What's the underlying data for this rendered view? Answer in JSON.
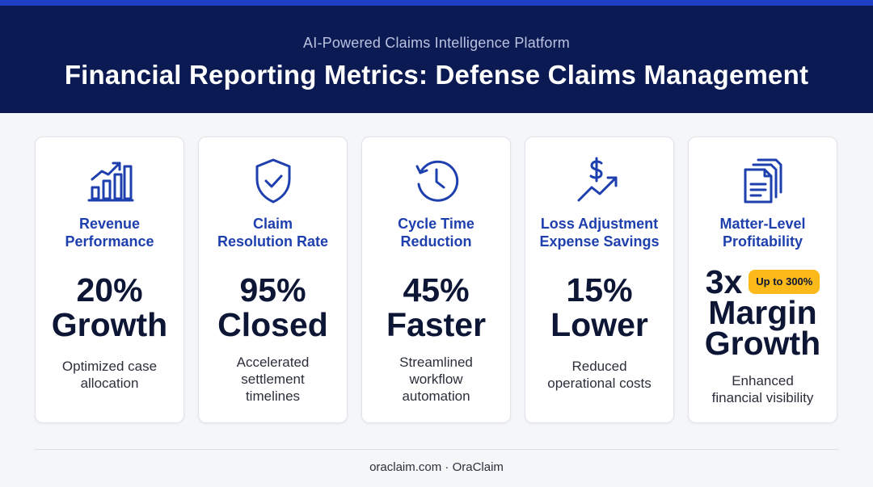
{
  "header": {
    "subtitle": "AI-Powered Claims Intelligence Platform",
    "title": "Financial Reporting Metrics: Defense Claims Management"
  },
  "cards": [
    {
      "icon": "bar-chart-growth-icon",
      "label_1": "Revenue",
      "label_2": "Performance",
      "value_1": "20%",
      "value_2": "Growth",
      "desc_1": "Optimized case",
      "desc_2": "allocation"
    },
    {
      "icon": "shield-check-icon",
      "label_1": "Claim",
      "label_2": "Resolution Rate",
      "value_1": "95%",
      "value_2": "Closed",
      "desc_1": "Accelerated",
      "desc_2": "settlement",
      "desc_3": "timelines"
    },
    {
      "icon": "clock-history-icon",
      "label_1": "Cycle Time",
      "label_2": "Reduction",
      "value_1": "45%",
      "value_2": "Faster",
      "desc_1": "Streamlined",
      "desc_2": "workflow",
      "desc_3": "automation"
    },
    {
      "icon": "dollar-trend-icon",
      "label_1": "Loss Adjustment",
      "label_2": "Expense Savings",
      "value_1": "15%",
      "value_2": "Lower",
      "desc_1": "Reduced",
      "desc_2": "operational costs"
    },
    {
      "icon": "documents-stack-icon",
      "label_1": "Matter-Level",
      "label_2": "Profitability",
      "value_1": "3x",
      "badge": "Up to 300%",
      "value_2": "Margin",
      "value_3": "Growth",
      "desc_1": "Enhanced",
      "desc_2": "financial visibility"
    }
  ],
  "footer": "oraclaim.com · OraClaim",
  "colors": {
    "header_bg": "#0b1a52",
    "accent": "#1e3fae",
    "badge": "#fbb91a",
    "topbar": "#1f3fc4"
  }
}
